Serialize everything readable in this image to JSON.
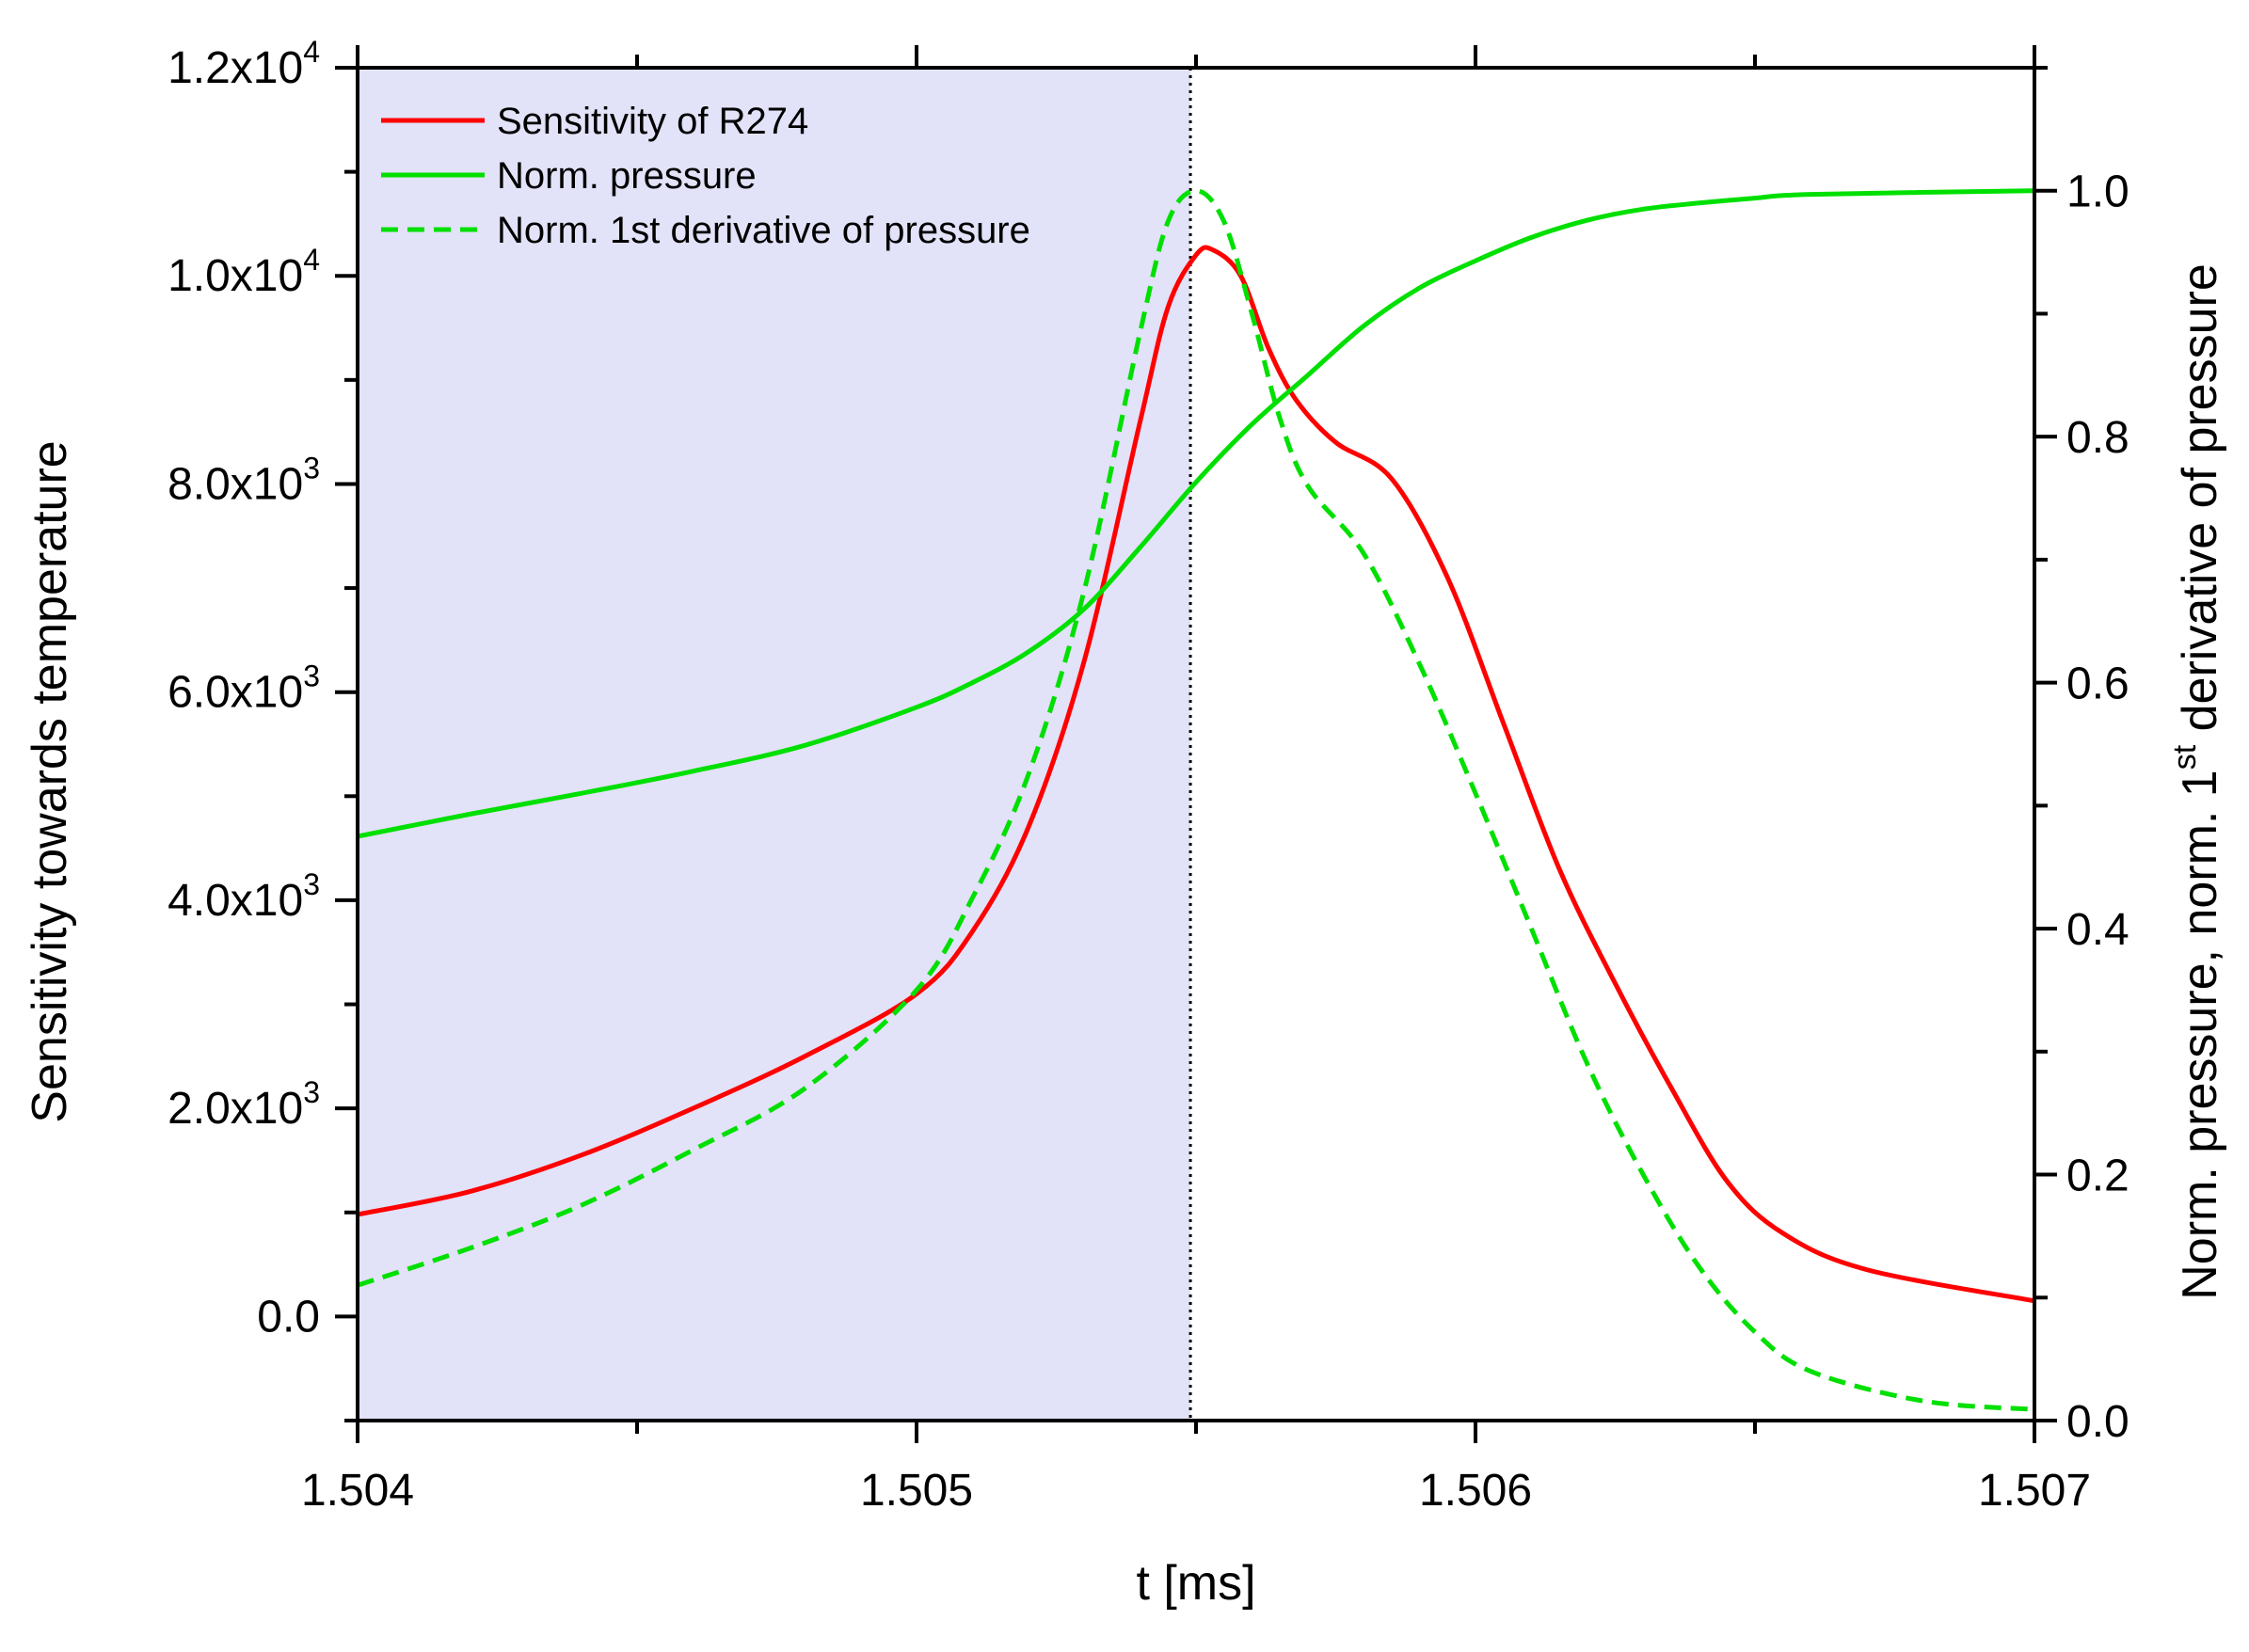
{
  "chart_data": {
    "type": "line",
    "xlabel": "t [ms]",
    "ylabel_left": "Sensitivity towards temperature",
    "ylabel_right_parts": [
      "Norm. pressure, norm. 1",
      "st",
      " derivative of pressure"
    ],
    "xlim": [
      1.504,
      1.507
    ],
    "ylim_left": [
      -1000,
      12000
    ],
    "ylim_right": [
      0,
      1.1
    ],
    "x_ticks": [
      1.504,
      1.505,
      1.506,
      1.507
    ],
    "x_tick_labels": [
      "1.504",
      "1.505",
      "1.506",
      "1.507"
    ],
    "y_left_ticks": [
      {
        "value": 0,
        "mantissa": "0.0",
        "exp": ""
      },
      {
        "value": 2000,
        "mantissa": "2.0x10",
        "exp": "3"
      },
      {
        "value": 4000,
        "mantissa": "4.0x10",
        "exp": "3"
      },
      {
        "value": 6000,
        "mantissa": "6.0x10",
        "exp": "3"
      },
      {
        "value": 8000,
        "mantissa": "8.0x10",
        "exp": "3"
      },
      {
        "value": 10000,
        "mantissa": "1.0x10",
        "exp": "4"
      },
      {
        "value": 12000,
        "mantissa": "1.2x10",
        "exp": "4"
      }
    ],
    "y_right_ticks": [
      {
        "value": 0.0,
        "label": "0.0"
      },
      {
        "value": 0.2,
        "label": "0.2"
      },
      {
        "value": 0.4,
        "label": "0.4"
      },
      {
        "value": 0.6,
        "label": "0.6"
      },
      {
        "value": 0.8,
        "label": "0.8"
      },
      {
        "value": 1.0,
        "label": "1.0"
      }
    ],
    "shaded_region": {
      "x_start": 1.504,
      "x_end": 1.50549,
      "color": "#e2e2f8"
    },
    "vertical_line": {
      "x": 1.50549,
      "style": "dotted"
    },
    "legend_position": "top-left",
    "series": [
      {
        "name": "Sensitivity of R274",
        "axis": "left",
        "color": "#ff0000",
        "style": "solid",
        "x": [
          1.504,
          1.5042,
          1.5044,
          1.5046,
          1.5048,
          1.505,
          1.5051,
          1.5052,
          1.5053,
          1.5054,
          1.50545,
          1.5055,
          1.50553,
          1.50558,
          1.50563,
          1.50568,
          1.50575,
          1.50585,
          1.50595,
          1.50605,
          1.50615,
          1.50625,
          1.50635,
          1.50645,
          1.50655,
          1.5067,
          1.507
        ],
        "y": [
          980,
          1200,
          1550,
          2000,
          2500,
          3100,
          3700,
          4700,
          6300,
          8600,
          9700,
          10200,
          10250,
          10000,
          9300,
          8800,
          8400,
          8050,
          7100,
          5700,
          4300,
          3200,
          2200,
          1300,
          800,
          450,
          150
        ]
      },
      {
        "name": "Norm. pressure",
        "axis": "right",
        "color": "#00e000",
        "style": "solid",
        "x": [
          1.504,
          1.5042,
          1.5044,
          1.5046,
          1.5048,
          1.505,
          1.5051,
          1.5052,
          1.5053,
          1.5054,
          1.5055,
          1.5056,
          1.5057,
          1.5058,
          1.5059,
          1.506,
          1.5061,
          1.5062,
          1.5063,
          1.5064,
          1.5065,
          1.5066,
          1.507
        ],
        "y": [
          0.475,
          0.493,
          0.51,
          0.528,
          0.549,
          0.58,
          0.6,
          0.625,
          0.66,
          0.71,
          0.763,
          0.81,
          0.85,
          0.89,
          0.921,
          0.943,
          0.962,
          0.976,
          0.985,
          0.99,
          0.994,
          0.997,
          1.0
        ]
      },
      {
        "name": "Norm. 1st derivative of pressure",
        "axis": "right",
        "color": "#00e000",
        "style": "dashed",
        "x": [
          1.504,
          1.5042,
          1.5044,
          1.5046,
          1.5048,
          1.505,
          1.5051,
          1.5052,
          1.5053,
          1.5054,
          1.50545,
          1.5055,
          1.50555,
          1.5056,
          1.50565,
          1.5057,
          1.5058,
          1.5059,
          1.506,
          1.5061,
          1.5062,
          1.5063,
          1.5064,
          1.5065,
          1.5066,
          1.5068,
          1.507
        ],
        "y": [
          0.11,
          0.14,
          0.175,
          0.22,
          0.27,
          0.35,
          0.425,
          0.525,
          0.675,
          0.885,
          0.975,
          1.0,
          0.975,
          0.9,
          0.815,
          0.76,
          0.705,
          0.615,
          0.51,
          0.4,
          0.29,
          0.2,
          0.125,
          0.072,
          0.04,
          0.016,
          0.009
        ]
      }
    ]
  }
}
